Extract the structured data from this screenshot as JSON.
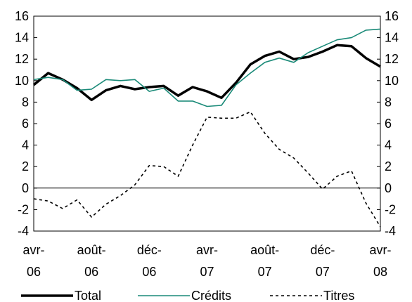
{
  "chart_data": {
    "type": "line",
    "title": "",
    "xlabel": "",
    "ylabel": "",
    "ylim": [
      -4,
      16
    ],
    "y_ticks": [
      -4,
      -2,
      0,
      2,
      4,
      6,
      8,
      10,
      12,
      14,
      16
    ],
    "y_axis_left": true,
    "y_axis_right": true,
    "grid": false,
    "zero_line": true,
    "legend_position": "bottom",
    "x_tick_labels": [
      {
        "line1": "avr-",
        "line2": "06",
        "index": 0
      },
      {
        "line1": "août-",
        "line2": "06",
        "index": 4
      },
      {
        "line1": "déc-",
        "line2": "06",
        "index": 8
      },
      {
        "line1": "avr-",
        "line2": "07",
        "index": 12
      },
      {
        "line1": "août-",
        "line2": "07",
        "index": 16
      },
      {
        "line1": "déc-",
        "line2": "07",
        "index": 20
      },
      {
        "line1": "avr-",
        "line2": "08",
        "index": 24
      }
    ],
    "x": [
      "avr-06",
      "mai-06",
      "juin-06",
      "juil-06",
      "août-06",
      "sept-06",
      "oct-06",
      "nov-06",
      "déc-06",
      "janv-07",
      "févr-07",
      "mars-07",
      "avr-07",
      "mai-07",
      "juin-07",
      "juil-07",
      "août-07",
      "sept-07",
      "oct-07",
      "nov-07",
      "déc-07",
      "janv-08",
      "févr-08",
      "mars-08",
      "avr-08"
    ],
    "series": [
      {
        "name": "Total",
        "color": "#000000",
        "width": 3.5,
        "dash": "",
        "values": [
          9.6,
          10.7,
          10.1,
          9.3,
          8.2,
          9.1,
          9.5,
          9.2,
          9.4,
          9.5,
          8.6,
          9.4,
          9.0,
          8.4,
          9.8,
          11.5,
          12.3,
          12.7,
          12.0,
          12.2,
          12.7,
          13.3,
          13.2,
          12.1,
          11.3
        ]
      },
      {
        "name": "Crédits",
        "color": "#1a8a78",
        "width": 1.6,
        "dash": "",
        "values": [
          10.1,
          10.3,
          10.1,
          9.1,
          9.2,
          10.1,
          10.0,
          10.1,
          9.0,
          9.3,
          8.1,
          8.1,
          7.6,
          7.7,
          9.6,
          10.7,
          11.7,
          12.1,
          11.7,
          12.6,
          13.2,
          13.8,
          14.0,
          14.7,
          14.8
        ]
      },
      {
        "name": "Titres",
        "color": "#000000",
        "width": 1.6,
        "dash": "4,4",
        "values": [
          -1.0,
          -1.2,
          -1.9,
          -1.1,
          -2.7,
          -1.5,
          -0.7,
          0.3,
          2.1,
          2.0,
          1.1,
          4.0,
          6.6,
          6.5,
          6.5,
          7.1,
          5.1,
          3.6,
          2.8,
          1.4,
          -0.1,
          1.1,
          1.6,
          -1.4,
          -3.6
        ]
      }
    ]
  }
}
